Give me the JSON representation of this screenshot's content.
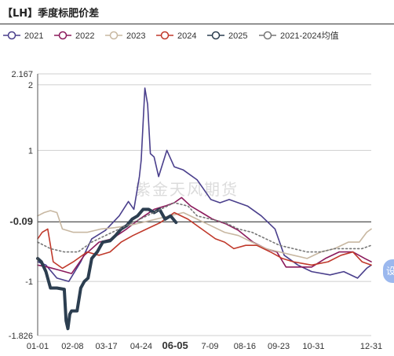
{
  "title": "【LH】季度标肥价差",
  "watermark": "紫金天风期货",
  "side_button_label": "设",
  "chart_data": {
    "type": "line",
    "title": "【LH】季度标肥价差",
    "xlabel": "",
    "ylabel": "",
    "ylim": [
      -1.826,
      2.167
    ],
    "y_ticks": [
      2.167,
      2,
      1,
      -0.09,
      -1,
      -1.826
    ],
    "y_tick_labels": [
      "2.167",
      "2",
      "1",
      "-0.09",
      "-1",
      "-1.826"
    ],
    "x_ticks": [
      1,
      39,
      76,
      114,
      151,
      189,
      227,
      264,
      302,
      340,
      365
    ],
    "x_tick_labels": [
      "01-01",
      "02-08",
      "03-17",
      "04-24",
      "06-05",
      "7-09",
      "08-16",
      "09-23",
      "10-31",
      "",
      "12-31"
    ],
    "x_pointer_label": "06-05",
    "y_pointer_label": "-0.09",
    "legend_position": "top",
    "grid": true,
    "series": [
      {
        "name": "2021",
        "color": "#4a3f8c",
        "style": "solid",
        "points": [
          [
            1,
            -0.7
          ],
          [
            10,
            -0.75
          ],
          [
            22,
            -0.95
          ],
          [
            35,
            -1.0
          ],
          [
            48,
            -0.7
          ],
          [
            60,
            -0.35
          ],
          [
            75,
            -0.22
          ],
          [
            90,
            0.0
          ],
          [
            100,
            0.22
          ],
          [
            106,
            0.1
          ],
          [
            112,
            0.6
          ],
          [
            114,
            0.85
          ],
          [
            118,
            1.95
          ],
          [
            121,
            1.7
          ],
          [
            124,
            0.95
          ],
          [
            128,
            0.9
          ],
          [
            133,
            0.6
          ],
          [
            142,
            1.0
          ],
          [
            150,
            0.75
          ],
          [
            160,
            0.7
          ],
          [
            175,
            0.55
          ],
          [
            190,
            0.25
          ],
          [
            200,
            0.2
          ],
          [
            210,
            0.25
          ],
          [
            230,
            0.15
          ],
          [
            245,
            0.0
          ],
          [
            260,
            -0.2
          ],
          [
            270,
            -0.6
          ],
          [
            285,
            -0.75
          ],
          [
            300,
            -0.85
          ],
          [
            320,
            -0.9
          ],
          [
            335,
            -0.85
          ],
          [
            350,
            -0.95
          ],
          [
            360,
            -0.8
          ],
          [
            365,
            -0.75
          ]
        ]
      },
      {
        "name": "2022",
        "color": "#8b1a5c",
        "style": "solid",
        "points": [
          [
            1,
            -0.75
          ],
          [
            12,
            -0.78
          ],
          [
            25,
            -0.83
          ],
          [
            38,
            -0.88
          ],
          [
            52,
            -0.6
          ],
          [
            68,
            -0.4
          ],
          [
            82,
            -0.35
          ],
          [
            98,
            -0.2
          ],
          [
            112,
            -0.05
          ],
          [
            128,
            0.1
          ],
          [
            140,
            0.15
          ],
          [
            150,
            0.2
          ],
          [
            158,
            0.28
          ],
          [
            168,
            0.15
          ],
          [
            180,
            0.05
          ],
          [
            192,
            -0.05
          ],
          [
            206,
            -0.12
          ],
          [
            220,
            -0.22
          ],
          [
            236,
            -0.4
          ],
          [
            250,
            -0.5
          ],
          [
            262,
            -0.55
          ],
          [
            272,
            -0.78
          ],
          [
            284,
            -0.78
          ],
          [
            300,
            -0.78
          ],
          [
            315,
            -0.65
          ],
          [
            330,
            -0.55
          ],
          [
            345,
            -0.55
          ],
          [
            358,
            -0.65
          ],
          [
            365,
            -0.7
          ]
        ]
      },
      {
        "name": "2023",
        "color": "#c8b8a2",
        "style": "solid",
        "points": [
          [
            1,
            0.0
          ],
          [
            8,
            0.05
          ],
          [
            15,
            0.08
          ],
          [
            22,
            0.05
          ],
          [
            28,
            -0.2
          ],
          [
            40,
            -0.25
          ],
          [
            55,
            -0.25
          ],
          [
            70,
            -0.2
          ],
          [
            85,
            -0.18
          ],
          [
            100,
            -0.15
          ],
          [
            115,
            -0.1
          ],
          [
            130,
            -0.05
          ],
          [
            145,
            0.0
          ],
          [
            160,
            0.05
          ],
          [
            175,
            -0.05
          ],
          [
            190,
            -0.15
          ],
          [
            205,
            -0.25
          ],
          [
            220,
            -0.3
          ],
          [
            235,
            -0.4
          ],
          [
            250,
            -0.5
          ],
          [
            265,
            -0.55
          ],
          [
            280,
            -0.6
          ],
          [
            295,
            -0.65
          ],
          [
            310,
            -0.55
          ],
          [
            325,
            -0.5
          ],
          [
            340,
            -0.4
          ],
          [
            352,
            -0.4
          ],
          [
            360,
            -0.25
          ],
          [
            365,
            -0.2
          ]
        ]
      },
      {
        "name": "2024",
        "color": "#c0392b",
        "style": "solid",
        "points": [
          [
            1,
            -0.35
          ],
          [
            6,
            -0.25
          ],
          [
            12,
            -0.2
          ],
          [
            18,
            -0.7
          ],
          [
            28,
            -0.8
          ],
          [
            40,
            -0.7
          ],
          [
            55,
            -0.55
          ],
          [
            68,
            -0.6
          ],
          [
            80,
            -0.55
          ],
          [
            92,
            -0.4
          ],
          [
            105,
            -0.3
          ],
          [
            120,
            -0.2
          ],
          [
            135,
            -0.1
          ],
          [
            150,
            0.05
          ],
          [
            165,
            -0.05
          ],
          [
            180,
            -0.2
          ],
          [
            195,
            -0.35
          ],
          [
            205,
            -0.4
          ],
          [
            215,
            -0.5
          ],
          [
            228,
            -0.45
          ],
          [
            240,
            -0.45
          ],
          [
            255,
            -0.55
          ],
          [
            268,
            -0.65
          ],
          [
            280,
            -0.7
          ],
          [
            300,
            -0.75
          ],
          [
            318,
            -0.7
          ],
          [
            332,
            -0.6
          ],
          [
            345,
            -0.55
          ],
          [
            355,
            -0.7
          ],
          [
            365,
            -0.75
          ]
        ]
      },
      {
        "name": "2025",
        "color": "#2c3e50",
        "style": "solid",
        "bold": true,
        "points": [
          [
            1,
            -0.65
          ],
          [
            5,
            -0.7
          ],
          [
            10,
            -0.85
          ],
          [
            15,
            -1.1
          ],
          [
            22,
            -1.1
          ],
          [
            30,
            -1.12
          ],
          [
            32,
            -1.6
          ],
          [
            34,
            -1.72
          ],
          [
            36,
            -1.5
          ],
          [
            38,
            -1.45
          ],
          [
            44,
            -1.45
          ],
          [
            48,
            -1.1
          ],
          [
            52,
            -1.0
          ],
          [
            56,
            -0.95
          ],
          [
            60,
            -0.65
          ],
          [
            66,
            -0.55
          ],
          [
            72,
            -0.4
          ],
          [
            80,
            -0.38
          ],
          [
            86,
            -0.3
          ],
          [
            92,
            -0.2
          ],
          [
            98,
            -0.15
          ],
          [
            104,
            -0.05
          ],
          [
            110,
            0.0
          ],
          [
            116,
            0.1
          ],
          [
            122,
            0.1
          ],
          [
            128,
            0.05
          ],
          [
            134,
            0.1
          ],
          [
            140,
            -0.05
          ],
          [
            146,
            0.0
          ],
          [
            152,
            -0.1
          ]
        ]
      },
      {
        "name": "2021-2024均值",
        "color": "#777777",
        "style": "dotted",
        "points": [
          [
            1,
            -0.4
          ],
          [
            15,
            -0.5
          ],
          [
            30,
            -0.55
          ],
          [
            45,
            -0.55
          ],
          [
            60,
            -0.4
          ],
          [
            75,
            -0.3
          ],
          [
            90,
            -0.2
          ],
          [
            105,
            -0.1
          ],
          [
            120,
            0.0
          ],
          [
            135,
            0.1
          ],
          [
            150,
            0.2
          ],
          [
            165,
            0.15
          ],
          [
            175,
            0.0
          ],
          [
            190,
            -0.05
          ],
          [
            205,
            -0.1
          ],
          [
            220,
            -0.2
          ],
          [
            235,
            -0.25
          ],
          [
            250,
            -0.35
          ],
          [
            265,
            -0.45
          ],
          [
            280,
            -0.5
          ],
          [
            295,
            -0.55
          ],
          [
            310,
            -0.55
          ],
          [
            325,
            -0.5
          ],
          [
            340,
            -0.5
          ],
          [
            355,
            -0.5
          ],
          [
            365,
            -0.45
          ]
        ]
      }
    ]
  }
}
